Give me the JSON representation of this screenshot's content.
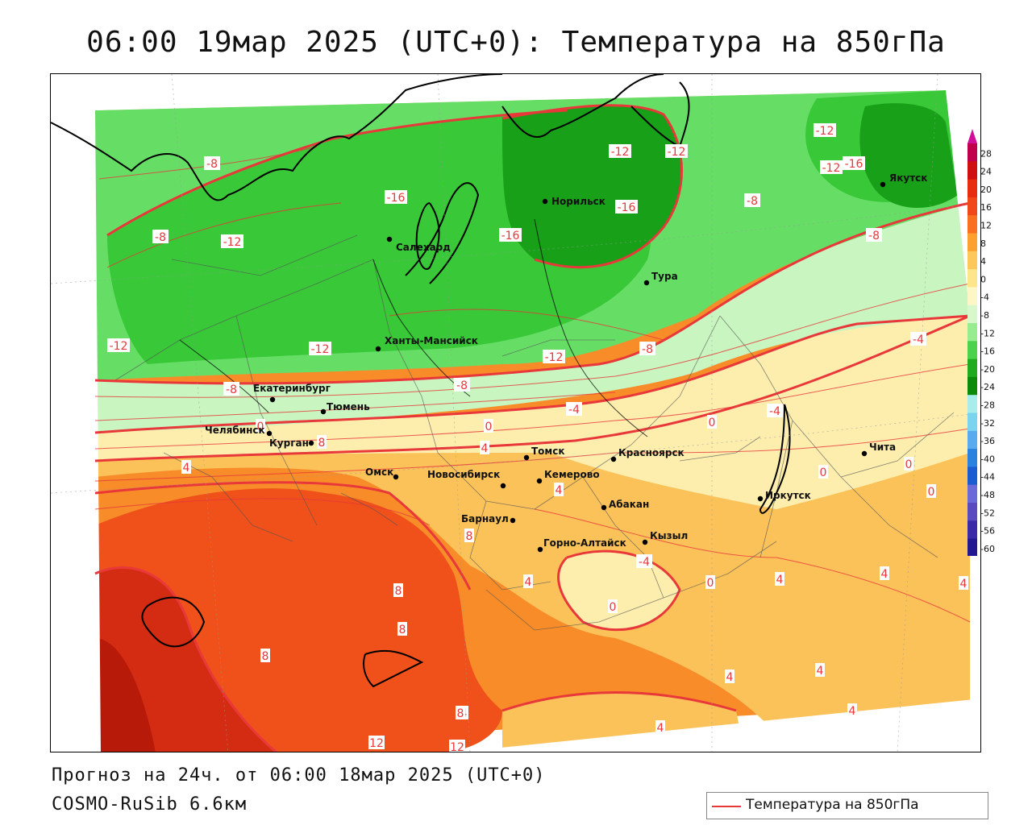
{
  "title": "06:00 19мар 2025 (UTC+0): Температура на 850гПа",
  "forecast_line": "Прогноз на 24ч. от 06:00 18мар 2025 (UTC+0)",
  "model_line": "COSMO-RuSib 6.6км",
  "legend_label": "Температура на 850гПа",
  "colors": {
    "contour": "#e8383a",
    "t_plus_12": "#d42c12",
    "t_plus_8": "#f0501a",
    "t_plus_4": "#f88c28",
    "t_plus_0": "#fcc25a",
    "t_minus_4": "#fdeeae",
    "t_minus_8": "#c8f5c0",
    "t_minus_12": "#66de66",
    "t_minus_16": "#38c838",
    "t_minus_20": "#18a018"
  },
  "scale": {
    "ticks": [
      "28",
      "24",
      "20",
      "16",
      "12",
      "8",
      "4",
      "0",
      "-4",
      "-8",
      "-12",
      "-16",
      "-20",
      "-24",
      "-28",
      "-32",
      "-36",
      "-40",
      "-44",
      "-48",
      "-52",
      "-56",
      "-60"
    ],
    "colors": [
      "#c0004a",
      "#d01010",
      "#e82c10",
      "#f04818",
      "#f87020",
      "#fca030",
      "#fdc85a",
      "#fde58a",
      "#fdf7c8",
      "#d8f8cc",
      "#98ec90",
      "#4cd24c",
      "#20aa20",
      "#0c8a0c",
      "#a8ecec",
      "#7ad4f0",
      "#5aaaf0",
      "#2a82e0",
      "#1a5cd0",
      "#6a6ad8",
      "#5a4ac0",
      "#3a2aa8",
      "#241890",
      "#5a0a98"
    ]
  },
  "cities": [
    {
      "name": "Салехард"
    },
    {
      "name": "Норильск"
    },
    {
      "name": "Якутск"
    },
    {
      "name": "Тура"
    },
    {
      "name": "Ханты-Мансийск"
    },
    {
      "name": "Екатеринбург"
    },
    {
      "name": "Тюмень"
    },
    {
      "name": "Челябинск"
    },
    {
      "name": "Курган"
    },
    {
      "name": "Омск"
    },
    {
      "name": "Новосибирск"
    },
    {
      "name": "Томск"
    },
    {
      "name": "Кемерово"
    },
    {
      "name": "Красноярск"
    },
    {
      "name": "Абакан"
    },
    {
      "name": "Барнаул"
    },
    {
      "name": "Горно-Алтайск"
    },
    {
      "name": "Кызыл"
    },
    {
      "name": "Иркутск"
    },
    {
      "name": "Чита"
    }
  ],
  "contour_labels": [
    "-8",
    "-8",
    "-12",
    "-16",
    "-12",
    "-12",
    "-16",
    "-16",
    "-12",
    "-12",
    "-16",
    "-8",
    "-8",
    "-12",
    "-12",
    "-12",
    "-8",
    "-8",
    "-8",
    "-4",
    "-4",
    "-4",
    "0",
    "0",
    "0",
    "0",
    "0",
    "0",
    "0",
    "0",
    "4",
    "4",
    "4",
    "4",
    "4",
    "4",
    "4",
    "4",
    "4",
    "4",
    "4",
    "4",
    "8",
    "8",
    "8",
    "8",
    "8",
    "8",
    "12",
    "12",
    "-4"
  ]
}
